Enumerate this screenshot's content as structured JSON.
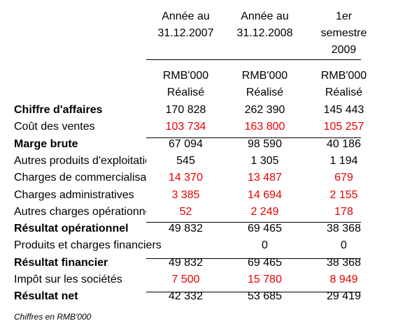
{
  "headers": {
    "col1": [
      "",
      "Année au",
      "31.12.2007"
    ],
    "col2": [
      "",
      "Année au",
      "31.12.2008"
    ],
    "col3": [
      "1er",
      "semestre",
      "2009"
    ],
    "unit": [
      "RMB'000",
      "RMB'000",
      "RMB'000"
    ],
    "status": [
      "Réalisé",
      "Réalisé",
      "Réalisé"
    ]
  },
  "rows": [
    {
      "label": "Chiffre d'affaires",
      "bold": true,
      "values": [
        "170 828",
        "262 390",
        "145 443"
      ],
      "negative": false
    },
    {
      "label": "Coût des ventes",
      "bold": false,
      "values": [
        "103 734",
        "163 800",
        "105 257"
      ],
      "negative": true
    },
    {
      "label": "Marge brute",
      "bold": true,
      "values": [
        "67 094",
        "98 590",
        "40 186"
      ],
      "negative": false
    },
    {
      "label": "Autres produits d'exploitation",
      "bold": false,
      "values": [
        "545",
        "1 305",
        "1 194"
      ],
      "negative": false
    },
    {
      "label": "Charges de commercialisation",
      "bold": false,
      "values": [
        "14 370",
        "13 487",
        "679"
      ],
      "negative": true
    },
    {
      "label": "Charges administratives",
      "bold": false,
      "values": [
        "3 385",
        "14 694",
        "2 155"
      ],
      "negative": true
    },
    {
      "label": "Autres charges opérationnelles",
      "bold": false,
      "values": [
        "52",
        "2 249",
        "178"
      ],
      "negative": true
    },
    {
      "label": "Résultat opérationnel",
      "bold": true,
      "values": [
        "49 832",
        "69 465",
        "38 368"
      ],
      "negative": false
    },
    {
      "label": "Produits et charges financiers",
      "bold": false,
      "values": [
        "",
        "0",
        "0"
      ],
      "negative": false,
      "wide": true
    },
    {
      "label": "Résultat financier",
      "bold": true,
      "values": [
        "49 832",
        "69 465",
        "38 368"
      ],
      "negative": false
    },
    {
      "label": "Impôt sur les sociétés",
      "bold": false,
      "values": [
        "7 500",
        "15 780",
        "8 949"
      ],
      "negative": true
    },
    {
      "label": "Résultat net",
      "bold": true,
      "values": [
        "42 332",
        "53 685",
        "29 419"
      ],
      "negative": false
    }
  ],
  "footnote": "Chiffres en RMB'000"
}
